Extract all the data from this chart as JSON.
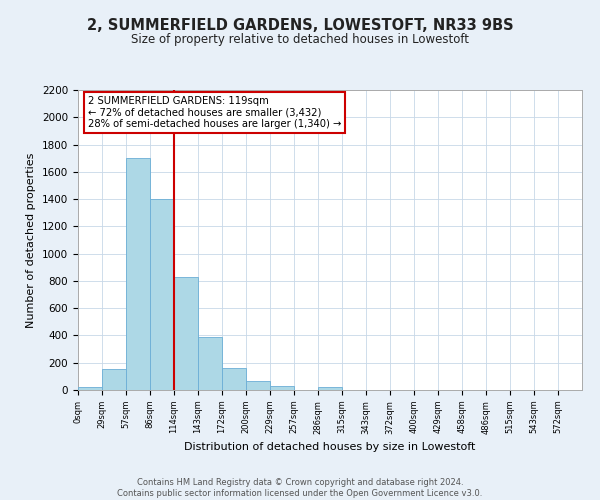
{
  "title": "2, SUMMERFIELD GARDENS, LOWESTOFT, NR33 9BS",
  "subtitle": "Size of property relative to detached houses in Lowestoft",
  "xlabel": "Distribution of detached houses by size in Lowestoft",
  "ylabel": "Number of detached properties",
  "bin_labels": [
    "0sqm",
    "29sqm",
    "57sqm",
    "86sqm",
    "114sqm",
    "143sqm",
    "172sqm",
    "200sqm",
    "229sqm",
    "257sqm",
    "286sqm",
    "315sqm",
    "343sqm",
    "372sqm",
    "400sqm",
    "429sqm",
    "458sqm",
    "486sqm",
    "515sqm",
    "543sqm",
    "572sqm"
  ],
  "bar_heights": [
    20,
    155,
    1700,
    1400,
    830,
    390,
    165,
    65,
    30,
    0,
    25,
    0,
    0,
    0,
    0,
    0,
    0,
    0,
    0,
    0,
    0
  ],
  "bar_color": "#add8e6",
  "bar_edgecolor": "#6baed6",
  "vline_x": 4,
  "vline_color": "#cc0000",
  "annotation_line1": "2 SUMMERFIELD GARDENS: 119sqm",
  "annotation_line2": "← 72% of detached houses are smaller (3,432)",
  "annotation_line3": "28% of semi-detached houses are larger (1,340) →",
  "annotation_box_edgecolor": "#cc0000",
  "ylim": [
    0,
    2200
  ],
  "yticks": [
    0,
    200,
    400,
    600,
    800,
    1000,
    1200,
    1400,
    1600,
    1800,
    2000,
    2200
  ],
  "footer_text": "Contains HM Land Registry data © Crown copyright and database right 2024.\nContains public sector information licensed under the Open Government Licence v3.0.",
  "bg_color": "#e8f0f8",
  "plot_bg_color": "#ffffff",
  "grid_color": "#c8d8e8"
}
